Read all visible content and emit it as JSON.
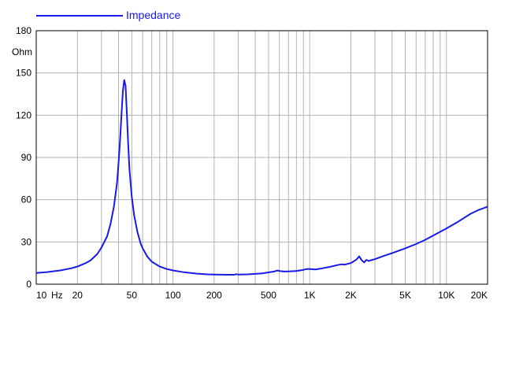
{
  "chart_data": {
    "type": "line",
    "title": "",
    "xlabel": "",
    "ylabel": "Ohm",
    "x_unit": "Hz",
    "x_scale": "log",
    "xlim": [
      10,
      20000
    ],
    "ylim": [
      0,
      180
    ],
    "grid": true,
    "legend_position": "top-left",
    "x_tick_labels": [
      {
        "value": 10,
        "label": "10"
      },
      {
        "value": 20,
        "label": "20"
      },
      {
        "value": 50,
        "label": "50"
      },
      {
        "value": 100,
        "label": "100"
      },
      {
        "value": 200,
        "label": "200"
      },
      {
        "value": 500,
        "label": "500"
      },
      {
        "value": 1000,
        "label": "1K"
      },
      {
        "value": 2000,
        "label": "2K"
      },
      {
        "value": 5000,
        "label": "5K"
      },
      {
        "value": 10000,
        "label": "10K"
      },
      {
        "value": 20000,
        "label": "20K"
      }
    ],
    "y_ticks": [
      0,
      30,
      60,
      90,
      120,
      150,
      180
    ],
    "series": [
      {
        "name": "Impedance",
        "color": "#1a1ae6",
        "x": [
          10,
          12,
          15,
          18,
          20,
          23,
          25,
          28,
          30,
          33,
          35,
          37,
          39,
          40,
          41,
          42,
          43,
          44,
          45,
          46,
          47,
          48,
          50,
          52,
          55,
          58,
          60,
          65,
          70,
          80,
          90,
          100,
          120,
          150,
          180,
          200,
          250,
          280,
          290,
          300,
          350,
          400,
          450,
          500,
          550,
          580,
          600,
          650,
          700,
          800,
          900,
          950,
          1000,
          1100,
          1200,
          1400,
          1600,
          1700,
          1800,
          2000,
          2200,
          2300,
          2400,
          2500,
          2600,
          2700,
          2800,
          3000,
          3500,
          4000,
          5000,
          6000,
          7000,
          8000,
          10000,
          12000,
          15000,
          17000,
          20000
        ],
        "values": [
          8,
          8.6,
          9.8,
          11.3,
          12.5,
          15,
          17,
          21.5,
          26,
          34,
          43,
          55,
          72,
          86,
          102,
          120,
          137,
          145,
          141,
          122,
          100,
          82,
          62,
          49,
          37,
          29,
          25.5,
          19.5,
          16,
          12.5,
          10.8,
          9.8,
          8.5,
          7.5,
          7.0,
          6.9,
          6.7,
          6.7,
          7.1,
          6.8,
          7.0,
          7.3,
          7.7,
          8.4,
          9.0,
          9.7,
          9.4,
          9.0,
          9.1,
          9.4,
          10.2,
          10.8,
          10.8,
          10.5,
          11.0,
          12.3,
          13.6,
          14.1,
          13.9,
          15.0,
          17.5,
          19.8,
          17.0,
          15.5,
          17.3,
          16.5,
          17.0,
          17.8,
          20.2,
          22.0,
          25.5,
          28.5,
          31.5,
          34.5,
          39.5,
          44.0,
          50.0,
          52.5,
          55.0
        ]
      }
    ]
  }
}
